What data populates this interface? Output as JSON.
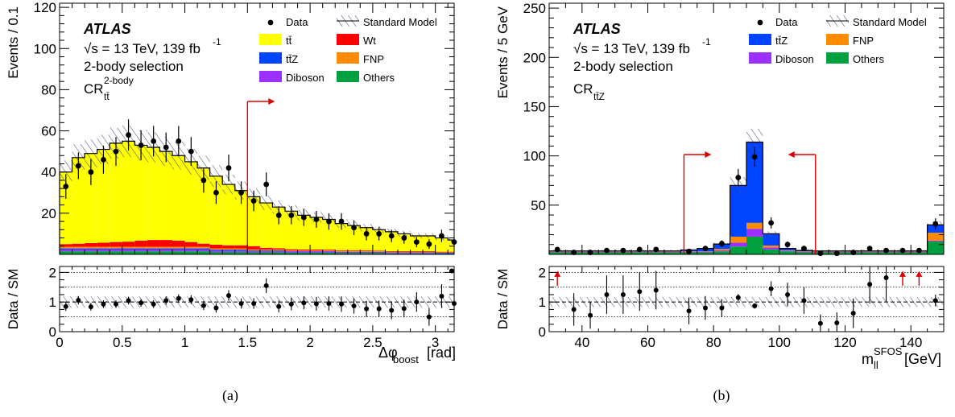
{
  "chart_data": [
    {
      "type": "bar",
      "subtype": "stacked-histogram-with-ratio",
      "panel_label": "(a)",
      "experiment": "ATLAS",
      "energy_lumi": "√s = 13 TeV, 139 fb",
      "lumi_exp": "-1",
      "selection": "2-body selection",
      "region_base": "CR",
      "region_sub": "tt̄",
      "region_sup": "2-body",
      "ylabel": "Events / 0.1",
      "xlabel_main": "Δφ",
      "xlabel_sub": "boost",
      "xlabel_unit": "[rad]",
      "ratio_ylabel": "Data / SM",
      "xlim": [
        0,
        3.15
      ],
      "ylim": [
        0,
        122
      ],
      "ratio_ylim": [
        0,
        2.2
      ],
      "x_ticks": [
        "0",
        "0.5",
        "1",
        "1.5",
        "2",
        "2.5",
        "3"
      ],
      "y_ticks": [
        "20",
        "40",
        "60",
        "80",
        "100",
        "120"
      ],
      "ratio_ticks": [
        "0",
        "1",
        "2"
      ],
      "cut_line": 1.5,
      "cut_direction": "right",
      "legend": [
        {
          "name": "Data",
          "marker": "point"
        },
        {
          "name": "Standard Model",
          "marker": "hatch"
        },
        {
          "name": "tt̄",
          "color": "#ffff00"
        },
        {
          "name": "Wt",
          "color": "#ff0000"
        },
        {
          "name": "tt̄Z",
          "color": "#0044ff"
        },
        {
          "name": "FNP",
          "color": "#ff8c00"
        },
        {
          "name": "Diboson",
          "color": "#9b30ff"
        },
        {
          "name": "Others",
          "color": "#00a040"
        }
      ],
      "bin_width": 0.1,
      "bin_lo": [
        0,
        0.1,
        0.2,
        0.3,
        0.4,
        0.5,
        0.6,
        0.7,
        0.8,
        0.9,
        1.0,
        1.1,
        1.2,
        1.3,
        1.4,
        1.5,
        1.6,
        1.7,
        1.8,
        1.9,
        2.0,
        2.1,
        2.2,
        2.3,
        2.4,
        2.5,
        2.6,
        2.7,
        2.8,
        2.9,
        3.0,
        3.1
      ],
      "total_sm": [
        40,
        47,
        49,
        51,
        54,
        55,
        53,
        52,
        50,
        48,
        45,
        42,
        38,
        34,
        31,
        28,
        25,
        23,
        21,
        19,
        18,
        17,
        15,
        14,
        13,
        12,
        11,
        10,
        9,
        9,
        8,
        7
      ],
      "stack": {
        "Others": [
          1.5,
          1.5,
          1.5,
          1.5,
          1.5,
          1.5,
          1.5,
          1.5,
          1.5,
          1.5,
          1.5,
          1.5,
          1.2,
          1.2,
          1.2,
          1.0,
          1.0,
          1.0,
          0.8,
          0.8,
          0.8,
          0.8,
          0.6,
          0.6,
          0.6,
          0.6,
          0.5,
          0.5,
          0.5,
          0.5,
          0.4,
          0.4
        ],
        "Diboson": [
          0.8,
          0.8,
          0.8,
          0.8,
          0.8,
          0.8,
          0.8,
          0.8,
          0.8,
          0.8,
          0.8,
          0.8,
          0.6,
          0.6,
          0.6,
          0.5,
          0.5,
          0.5,
          0.4,
          0.4,
          0.4,
          0.4,
          0.3,
          0.3,
          0.3,
          0.3,
          0.3,
          0.3,
          0.3,
          0.3,
          0.2,
          0.2
        ],
        "tt̄Z": [
          0.6,
          0.6,
          0.6,
          0.6,
          0.6,
          0.6,
          0.6,
          0.6,
          0.6,
          0.6,
          0.6,
          0.6,
          0.5,
          0.5,
          0.5,
          0.4,
          0.4,
          0.4,
          0.3,
          0.3,
          0.3,
          0.3,
          0.3,
          0.3,
          0.3,
          0.3,
          0.2,
          0.2,
          0.2,
          0.2,
          0.2,
          0.2
        ],
        "FNP": [
          0.8,
          0.8,
          0.8,
          0.8,
          0.8,
          0.8,
          0.8,
          0.8,
          0.8,
          0.8,
          0.8,
          0.8,
          0.6,
          0.6,
          0.6,
          0.5,
          0.5,
          0.5,
          0.4,
          0.4,
          0.4,
          0.4,
          0.3,
          0.3,
          0.3,
          0.3,
          0.3,
          0.3,
          0.3,
          0.3,
          0.2,
          0.2
        ],
        "Wt": [
          1.3,
          1.5,
          1.8,
          2.0,
          2.3,
          2.5,
          3.0,
          3.3,
          3.3,
          3.0,
          2.3,
          1.5,
          1.8,
          1.5,
          1.5,
          1.6,
          0.8,
          0.6,
          0.6,
          0.5,
          0.5,
          0.4,
          0.4,
          0.4,
          0.4,
          0.3,
          0.3,
          0.3,
          0.3,
          0.3,
          0.3,
          0.3
        ]
      },
      "data_y": [
        33,
        43,
        40,
        46,
        50,
        58,
        53,
        55,
        52,
        55,
        50,
        36,
        30,
        42,
        30,
        26,
        34,
        19,
        19,
        18,
        17,
        16,
        16,
        13,
        10,
        10,
        9,
        8,
        6,
        5,
        9,
        6
      ],
      "data_err": [
        6,
        6.5,
        6.3,
        6.8,
        7,
        7.6,
        7.3,
        7.4,
        7.2,
        7.4,
        7,
        6,
        5.5,
        6.5,
        5.5,
        5,
        5.8,
        4.4,
        4.4,
        4.2,
        4.1,
        4,
        4,
        3.6,
        3.2,
        3.2,
        3,
        2.8,
        2.5,
        2.3,
        3,
        2.5
      ],
      "ratio": [
        0.85,
        1.06,
        0.84,
        0.93,
        0.93,
        1.05,
        0.97,
        0.93,
        1.05,
        1.12,
        1.08,
        0.88,
        0.8,
        1.22,
        0.95,
        0.95,
        1.55,
        0.85,
        0.93,
        0.97,
        0.94,
        0.95,
        0.93,
        0.87,
        0.77,
        0.77,
        0.72,
        0.78,
        1.0,
        0.5,
        1.2,
        0.95
      ],
      "ratio_err": [
        0.15,
        0.14,
        0.13,
        0.13,
        0.13,
        0.13,
        0.13,
        0.13,
        0.14,
        0.14,
        0.15,
        0.15,
        0.16,
        0.18,
        0.17,
        0.18,
        0.25,
        0.2,
        0.21,
        0.22,
        0.23,
        0.24,
        0.26,
        0.26,
        0.27,
        0.28,
        0.3,
        0.3,
        0.33,
        0.3,
        0.4,
        0.4
      ],
      "ratio_last": 2.05,
      "sm_rel_unc": 0.14
    },
    {
      "type": "bar",
      "subtype": "stacked-histogram-with-ratio",
      "panel_label": "(b)",
      "experiment": "ATLAS",
      "energy_lumi": "√s = 13 TeV, 139 fb",
      "lumi_exp": "-1",
      "selection": "2-body selection",
      "region_base": "CR",
      "region_sub": "tt̄Z",
      "region_sup": "",
      "ylabel": "Events / 5 GeV",
      "xlabel_main": "m",
      "xlabel_sub": "ll",
      "xlabel_sup": "SFOS",
      "xlabel_unit": "[GeV]",
      "ratio_ylabel": "Data / SM",
      "xlim": [
        30,
        150
      ],
      "ylim": [
        0,
        255
      ],
      "ratio_ylim": [
        0,
        2.2
      ],
      "x_ticks": [
        "40",
        "60",
        "80",
        "100",
        "120",
        "140"
      ],
      "y_ticks": [
        "50",
        "100",
        "150",
        "200",
        "250"
      ],
      "ratio_ticks": [
        "0",
        "1",
        "2"
      ],
      "cut_lines": [
        {
          "x": 71,
          "direction": "right"
        },
        {
          "x": 111,
          "direction": "left"
        }
      ],
      "ratio_arrows_x": [
        32.5,
        137.5,
        142.5
      ],
      "legend": [
        {
          "name": "Data",
          "marker": "point"
        },
        {
          "name": "Standard Model",
          "marker": "hatch"
        },
        {
          "name": "tt̄Z",
          "color": "#0044ff"
        },
        {
          "name": "FNP",
          "color": "#ff8c00"
        },
        {
          "name": "Diboson",
          "color": "#9b30ff"
        },
        {
          "name": "Others",
          "color": "#00a040"
        }
      ],
      "bin_width": 5,
      "bin_lo": [
        30,
        35,
        40,
        45,
        50,
        55,
        60,
        65,
        70,
        75,
        80,
        85,
        90,
        95,
        100,
        105,
        110,
        115,
        120,
        125,
        130,
        135,
        140,
        145
      ],
      "stack": {
        "Others": [
          2,
          2,
          2,
          2,
          2,
          2,
          2,
          2,
          2,
          2,
          3,
          8,
          18,
          5,
          3,
          2,
          2,
          2,
          2,
          2,
          2,
          2,
          2,
          13
        ],
        "Diboson": [
          0.5,
          0.5,
          0.5,
          0.5,
          0.5,
          0.5,
          0.5,
          0.5,
          0.5,
          0.5,
          1,
          4,
          8,
          2,
          0.5,
          0.5,
          0.5,
          0.5,
          0.5,
          0.5,
          0.5,
          0.5,
          0.5,
          1
        ],
        "FNP": [
          0.5,
          0.5,
          0.5,
          0.5,
          0.5,
          0.5,
          0.5,
          0.5,
          0.5,
          0.5,
          1.5,
          6,
          6,
          2,
          0.5,
          0.5,
          0.5,
          0.5,
          0.5,
          0.5,
          0.5,
          0.5,
          0.5,
          8
        ],
        "tt̄Z": [
          0.5,
          0.5,
          0.5,
          0.5,
          0.5,
          0.5,
          0.5,
          0.5,
          1.5,
          3,
          5,
          52,
          82,
          12,
          2,
          1,
          0.5,
          0.5,
          0.5,
          0.5,
          0.5,
          0.5,
          0.5,
          8
        ]
      },
      "data_x": [
        32.5,
        37.5,
        42.5,
        47.5,
        52.5,
        57.5,
        62.5,
        72.5,
        77.5,
        82.5,
        87.5,
        92.5,
        97.5,
        102.5,
        107.5,
        112.5,
        117.5,
        122.5,
        127.5,
        132.5,
        137.5,
        142.5,
        147.5
      ],
      "data_y": [
        5,
        2,
        2,
        4,
        4,
        5,
        5,
        3,
        6,
        11,
        78,
        99,
        32,
        10,
        6,
        1,
        1,
        2,
        6,
        4,
        4,
        4,
        31
      ],
      "data_err": [
        2.2,
        1.4,
        1.4,
        2,
        2,
        2.2,
        2.2,
        1.7,
        2.4,
        3.3,
        8.8,
        10,
        5.7,
        3.2,
        2.4,
        1,
        1,
        1.4,
        2.4,
        2,
        2,
        2,
        5.6
      ],
      "ratio": [
        null,
        0.75,
        0.55,
        1.25,
        1.25,
        1.35,
        1.4,
        0.7,
        0.8,
        0.8,
        1.15,
        0.87,
        1.45,
        1.25,
        1.05,
        0.28,
        0.3,
        0.62,
        1.6,
        1.82,
        null,
        null,
        1.05
      ],
      "ratio_err": [
        0,
        0.55,
        0.45,
        0.65,
        0.65,
        0.65,
        0.65,
        0.45,
        0.4,
        0.3,
        0.12,
        0.09,
        0.25,
        0.4,
        0.45,
        0.3,
        0.35,
        0.5,
        0.65,
        0.8,
        0,
        0,
        0.2
      ],
      "sm_rel_unc": 0.12
    }
  ]
}
